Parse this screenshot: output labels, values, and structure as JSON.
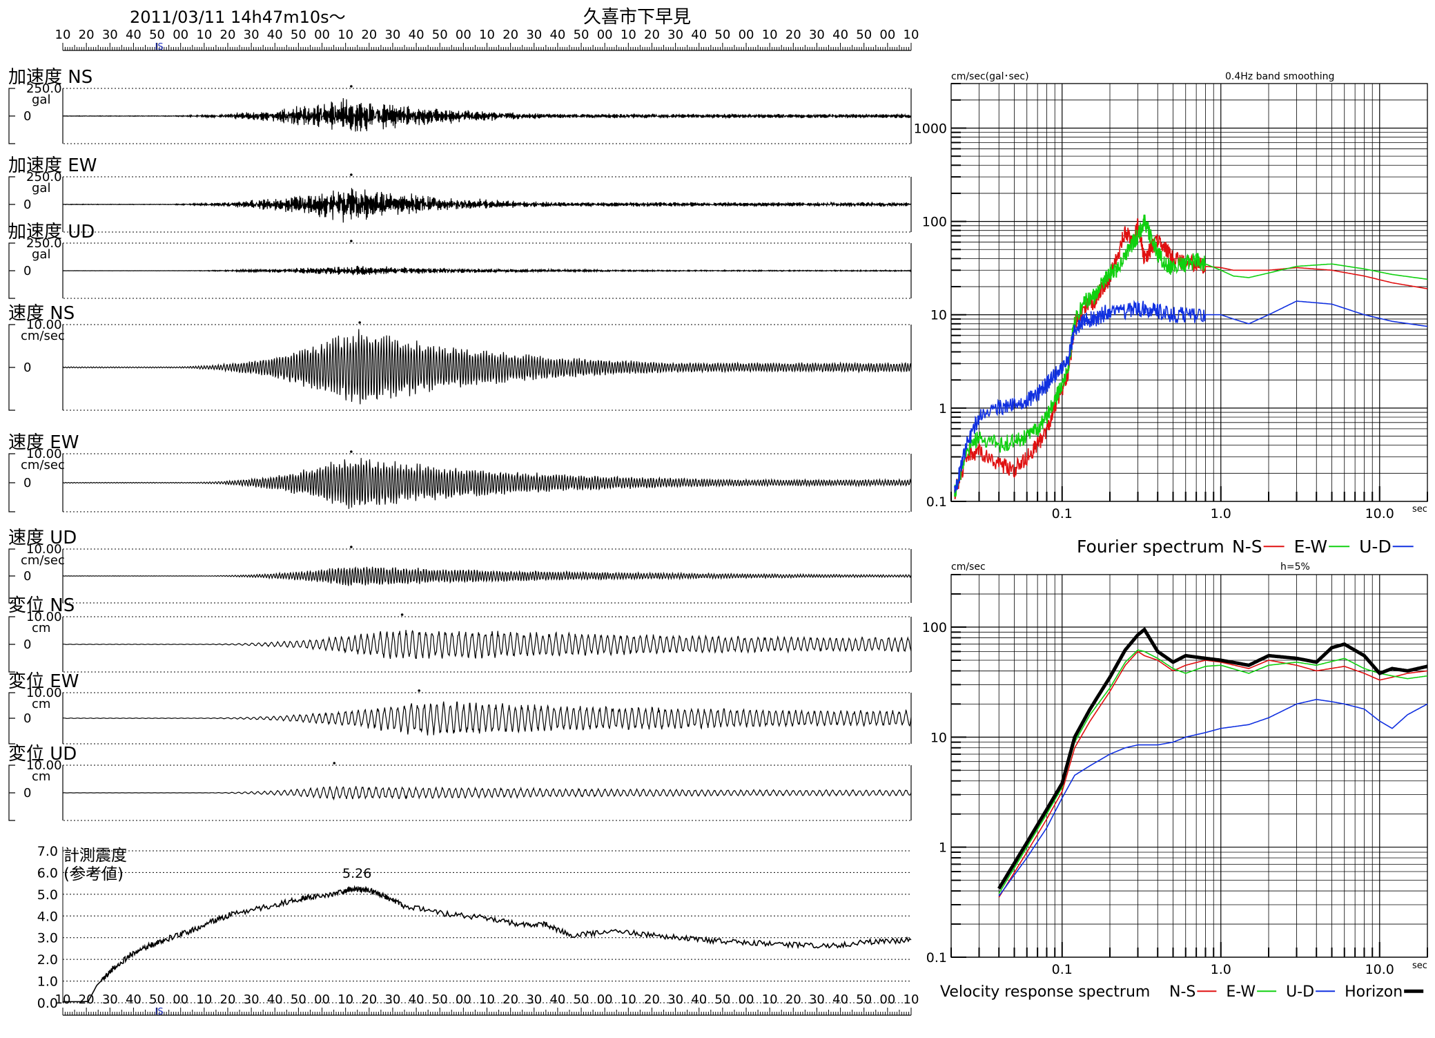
{
  "header": {
    "datetime": "2011/03/11 14h47m10s～",
    "station": "久喜市下早見",
    "time_axis_labels": [
      "10",
      "20",
      "30",
      "40",
      "50",
      "00",
      "10",
      "20",
      "30",
      "40",
      "50",
      "00",
      "10",
      "20",
      "30",
      "40",
      "50",
      "00",
      "10",
      "20",
      "30",
      "40",
      "50",
      "00",
      "10",
      "20",
      "30",
      "40",
      "50",
      "00",
      "10",
      "20",
      "30",
      "40",
      "50",
      "00",
      "10"
    ],
    "is_marker": "IS"
  },
  "chart_data": [
    {
      "type": "line",
      "id": "acc-ns",
      "title": "加速度 NS",
      "scale": "250.0",
      "unit": "gal",
      "zero": "0",
      "amplitude": 0.55,
      "onset": 0.1,
      "peak": 0.34,
      "decay": 0.12,
      "period": "short",
      "color": "#000000"
    },
    {
      "type": "line",
      "id": "acc-ew",
      "title": "加速度 EW",
      "scale": "250.0",
      "unit": "gal",
      "zero": "0",
      "amplitude": 0.55,
      "onset": 0.1,
      "peak": 0.34,
      "decay": 0.12,
      "period": "short",
      "color": "#000000"
    },
    {
      "type": "line",
      "id": "acc-ud",
      "title": "加速度 UD",
      "scale": "250.0",
      "unit": "gal",
      "zero": "0",
      "amplitude": 0.15,
      "onset": 0.1,
      "peak": 0.34,
      "decay": 0.18,
      "period": "short",
      "color": "#000000"
    },
    {
      "type": "line",
      "id": "vel-ns",
      "title": "速度 NS",
      "scale": "10.00",
      "unit": "cm/sec",
      "zero": "0",
      "amplitude": 0.95,
      "onset": 0.12,
      "peak": 0.35,
      "decay": 0.18,
      "period": "mid",
      "color": "#000000"
    },
    {
      "type": "line",
      "id": "vel-ew",
      "title": "速度 EW",
      "scale": "10.00",
      "unit": "cm/sec",
      "zero": "0",
      "amplitude": 0.95,
      "onset": 0.14,
      "peak": 0.34,
      "decay": 0.22,
      "period": "mid",
      "color": "#000000"
    },
    {
      "type": "line",
      "id": "vel-ud",
      "title": "速度 UD",
      "scale": "10.00",
      "unit": "cm/sec",
      "zero": "0",
      "amplitude": 0.4,
      "onset": 0.15,
      "peak": 0.34,
      "decay": 0.3,
      "period": "mid",
      "color": "#000000"
    },
    {
      "type": "line",
      "id": "dis-ns",
      "title": "変位 NS",
      "scale": "10.00",
      "unit": "cm",
      "zero": "0",
      "amplitude": 0.6,
      "onset": 0.15,
      "peak": 0.4,
      "decay": 0.6,
      "period": "long",
      "color": "#000000"
    },
    {
      "type": "line",
      "id": "dis-ew",
      "title": "変位 EW",
      "scale": "10.00",
      "unit": "cm",
      "zero": "0",
      "amplitude": 0.7,
      "onset": 0.15,
      "peak": 0.42,
      "decay": 0.6,
      "period": "long",
      "color": "#000000"
    },
    {
      "type": "line",
      "id": "dis-ud",
      "title": "変位 UD",
      "scale": "10.00",
      "unit": "cm",
      "zero": "0",
      "amplitude": 0.25,
      "onset": 0.15,
      "peak": 0.32,
      "decay": 0.6,
      "period": "long",
      "color": "#000000"
    },
    {
      "type": "line",
      "id": "intensity",
      "title": "計測震度",
      "subtitle": "(参考値)",
      "peak_label": "5.26",
      "y_ticks": [
        "0.0",
        "1.0",
        "2.0",
        "3.0",
        "4.0",
        "5.0",
        "6.0",
        "7.0"
      ],
      "ylim": [
        0,
        7
      ],
      "x": [
        0,
        0.02,
        0.03,
        0.04,
        0.05,
        0.06,
        0.08,
        0.1,
        0.12,
        0.15,
        0.18,
        0.2,
        0.25,
        0.28,
        0.3,
        0.33,
        0.34,
        0.36,
        0.38,
        0.4,
        0.45,
        0.5,
        0.54,
        0.57,
        0.6,
        0.65,
        0.7,
        0.75,
        0.8,
        0.85,
        0.9,
        0.95,
        1.0
      ],
      "y": [
        0.05,
        0.05,
        0.06,
        0.8,
        1.2,
        1.6,
        2.2,
        2.6,
        2.9,
        3.3,
        3.8,
        4.1,
        4.5,
        4.8,
        4.9,
        5.1,
        5.26,
        5.2,
        4.9,
        4.5,
        4.1,
        3.9,
        3.6,
        3.6,
        3.1,
        3.3,
        3.1,
        2.9,
        2.8,
        2.7,
        2.6,
        2.8,
        2.9
      ],
      "color": "#000000"
    },
    {
      "type": "line",
      "id": "fourier",
      "title": "Fourier spectrum",
      "yunit": "cm/sec(gal･sec)",
      "note": "0.4Hz band smoothing",
      "xunit": "sec",
      "xscale": "log",
      "yscale": "log",
      "xlim": [
        0.02,
        20
      ],
      "ylim": [
        0.1,
        3000
      ],
      "x_ticks": [
        "0.1",
        "1.0",
        "10.0"
      ],
      "y_ticks": [
        "0.1",
        "1",
        "10",
        "100",
        "1000"
      ],
      "series": [
        {
          "name": "N-S",
          "color": "#e01010",
          "x": [
            0.021,
            0.025,
            0.03,
            0.04,
            0.05,
            0.06,
            0.07,
            0.08,
            0.09,
            0.1,
            0.11,
            0.12,
            0.14,
            0.16,
            0.18,
            0.2,
            0.22,
            0.25,
            0.28,
            0.3,
            0.33,
            0.36,
            0.4,
            0.45,
            0.5,
            0.6,
            0.7,
            0.8,
            1.0,
            1.2,
            1.5,
            2.0,
            3.0,
            5.0,
            8.0,
            12.0,
            20.0
          ],
          "y": [
            0.12,
            0.3,
            0.35,
            0.25,
            0.22,
            0.3,
            0.4,
            0.6,
            1.0,
            1.5,
            2.5,
            8,
            12,
            14,
            20,
            25,
            40,
            80,
            60,
            90,
            40,
            50,
            60,
            50,
            40,
            35,
            35,
            33,
            32,
            30,
            30,
            30,
            32,
            30,
            26,
            22,
            19
          ]
        },
        {
          "name": "E-W",
          "color": "#10d010",
          "x": [
            0.021,
            0.025,
            0.03,
            0.04,
            0.05,
            0.06,
            0.07,
            0.08,
            0.09,
            0.1,
            0.11,
            0.12,
            0.14,
            0.16,
            0.18,
            0.2,
            0.22,
            0.25,
            0.28,
            0.3,
            0.33,
            0.36,
            0.4,
            0.45,
            0.5,
            0.6,
            0.7,
            0.8,
            1.0,
            1.2,
            1.5,
            2.0,
            3.0,
            5.0,
            8.0,
            12.0,
            20.0
          ],
          "y": [
            0.12,
            0.35,
            0.5,
            0.4,
            0.45,
            0.5,
            0.6,
            0.8,
            1.2,
            1.8,
            3,
            9,
            14,
            16,
            22,
            28,
            30,
            45,
            60,
            70,
            100,
            70,
            45,
            35,
            32,
            35,
            38,
            35,
            30,
            26,
            25,
            28,
            33,
            35,
            31,
            27,
            24
          ]
        },
        {
          "name": "U-D",
          "color": "#1030e0",
          "x": [
            0.021,
            0.025,
            0.03,
            0.04,
            0.05,
            0.06,
            0.07,
            0.08,
            0.09,
            0.1,
            0.11,
            0.12,
            0.14,
            0.16,
            0.18,
            0.2,
            0.25,
            0.3,
            0.35,
            0.4,
            0.5,
            0.6,
            0.8,
            1.0,
            1.2,
            1.5,
            2.0,
            3.0,
            5.0,
            8.0,
            12.0,
            20.0
          ],
          "y": [
            0.12,
            0.4,
            0.8,
            1.0,
            1.1,
            1.2,
            1.4,
            1.8,
            2.2,
            2.8,
            3.5,
            7,
            9,
            9,
            10,
            11,
            11,
            12,
            11,
            11,
            10,
            10,
            10,
            10,
            9,
            8,
            10,
            14,
            13,
            10,
            8.5,
            7.5
          ]
        }
      ]
    },
    {
      "type": "line",
      "id": "response",
      "title": "Velocity response spectrum",
      "yunit": "cm/sec",
      "note": "h=5%",
      "xunit": "sec",
      "xscale": "log",
      "yscale": "log",
      "xlim": [
        0.02,
        20
      ],
      "ylim": [
        0.1,
        300
      ],
      "x_ticks": [
        "0.1",
        "1.0",
        "10.0"
      ],
      "y_ticks": [
        "0.1",
        "1",
        "10",
        "100"
      ],
      "series": [
        {
          "name": "N-S",
          "color": "#e01010",
          "x": [
            0.04,
            0.06,
            0.08,
            0.1,
            0.12,
            0.15,
            0.2,
            0.25,
            0.3,
            0.33,
            0.4,
            0.5,
            0.6,
            0.8,
            1.0,
            1.5,
            2.0,
            3.0,
            4.0,
            6.0,
            8.0,
            10.0,
            12.0,
            15.0,
            20.0
          ],
          "y": [
            0.35,
            0.9,
            1.8,
            3.2,
            8,
            14,
            26,
            45,
            60,
            55,
            50,
            40,
            45,
            50,
            48,
            42,
            50,
            45,
            40,
            44,
            38,
            33,
            35,
            38,
            40
          ]
        },
        {
          "name": "E-W",
          "color": "#10d010",
          "x": [
            0.04,
            0.06,
            0.08,
            0.1,
            0.12,
            0.15,
            0.2,
            0.25,
            0.3,
            0.33,
            0.4,
            0.5,
            0.6,
            0.8,
            1.0,
            1.5,
            2.0,
            3.0,
            4.0,
            6.0,
            8.0,
            10.0,
            12.0,
            15.0,
            20.0
          ],
          "y": [
            0.38,
            1.0,
            2.0,
            3.5,
            9,
            16,
            28,
            48,
            62,
            60,
            52,
            42,
            38,
            44,
            45,
            38,
            45,
            48,
            45,
            52,
            42,
            38,
            36,
            34,
            36
          ]
        },
        {
          "name": "U-D",
          "color": "#1030e0",
          "x": [
            0.04,
            0.06,
            0.08,
            0.1,
            0.12,
            0.15,
            0.2,
            0.25,
            0.3,
            0.4,
            0.5,
            0.6,
            0.8,
            1.0,
            1.5,
            2.0,
            3.0,
            4.0,
            5.0,
            6.0,
            8.0,
            10.0,
            12.0,
            15.0,
            20.0
          ],
          "y": [
            0.36,
            0.8,
            1.5,
            2.8,
            4.5,
            5.5,
            7,
            8,
            8.5,
            8.5,
            9,
            10,
            11,
            12,
            13,
            15,
            20,
            22,
            21,
            20,
            18,
            14,
            12,
            16,
            20
          ]
        },
        {
          "name": "Horizon",
          "color": "#000000",
          "x": [
            0.04,
            0.06,
            0.08,
            0.1,
            0.12,
            0.15,
            0.2,
            0.25,
            0.3,
            0.33,
            0.4,
            0.5,
            0.6,
            0.8,
            1.0,
            1.5,
            2.0,
            3.0,
            4.0,
            5.0,
            6.0,
            8.0,
            10.0,
            12.0,
            15.0,
            20.0
          ],
          "y": [
            0.42,
            1.1,
            2.2,
            3.8,
            10,
            18,
            35,
            62,
            85,
            95,
            60,
            48,
            55,
            52,
            50,
            45,
            55,
            52,
            48,
            65,
            70,
            55,
            38,
            42,
            40,
            44
          ]
        }
      ]
    }
  ]
}
